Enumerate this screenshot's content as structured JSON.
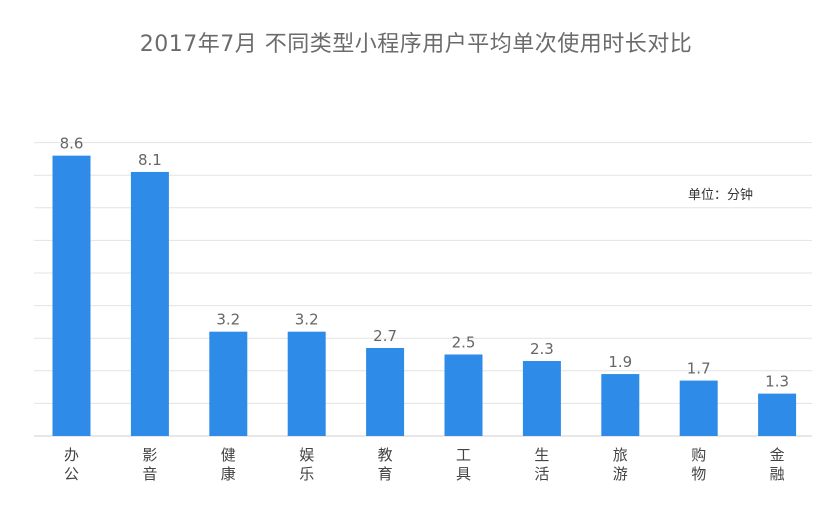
{
  "chart_data": {
    "type": "bar",
    "title": "2017年7月 不同类型小程序用户平均单次使用时长对比",
    "unit_note": "单位：分钟",
    "categories": [
      "办公",
      "影音",
      "健康",
      "娱乐",
      "教育",
      "工具",
      "生活",
      "旅游",
      "购物",
      "金融"
    ],
    "values": [
      8.6,
      8.1,
      3.2,
      3.2,
      2.7,
      2.5,
      2.3,
      1.9,
      1.7,
      1.3
    ],
    "value_labels": [
      "8.6",
      "8.1",
      "3.2",
      "3.2",
      "2.7",
      "2.5",
      "2.3",
      "1.9",
      "1.7",
      "1.3"
    ],
    "xlabel": "",
    "ylabel": "",
    "ylim": [
      0,
      9
    ],
    "grid": true,
    "gridline_step": 1,
    "bar_color": "#2e8be8",
    "legend": "none"
  }
}
